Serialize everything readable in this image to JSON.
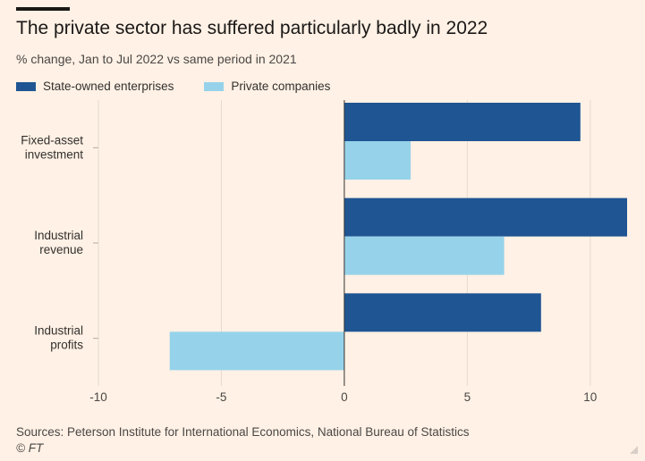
{
  "chart_data": {
    "type": "bar",
    "orientation": "horizontal",
    "title": "The private sector has suffered particularly badly in 2022",
    "subtitle": "% change, Jan to Jul 2022 vs same period in 2021",
    "categories": [
      [
        "Fixed-asset",
        "investment"
      ],
      [
        "Industrial",
        "revenue"
      ],
      [
        "Industrial",
        "profits"
      ]
    ],
    "series": [
      {
        "name": "State-owned enterprises",
        "color": "#1f5593",
        "values": [
          9.6,
          11.5,
          8.0
        ]
      },
      {
        "name": "Private companies",
        "color": "#96d3ea",
        "values": [
          2.7,
          6.5,
          -7.1
        ]
      }
    ],
    "xlim": [
      -10,
      11.5
    ],
    "xticks": [
      -10,
      -5,
      0,
      5,
      10
    ],
    "grid": true,
    "legend_position": "top-left"
  },
  "footer": {
    "source": "Sources: Peterson Institute for International Economics, National Bureau of Statistics",
    "credit": "© FT"
  }
}
